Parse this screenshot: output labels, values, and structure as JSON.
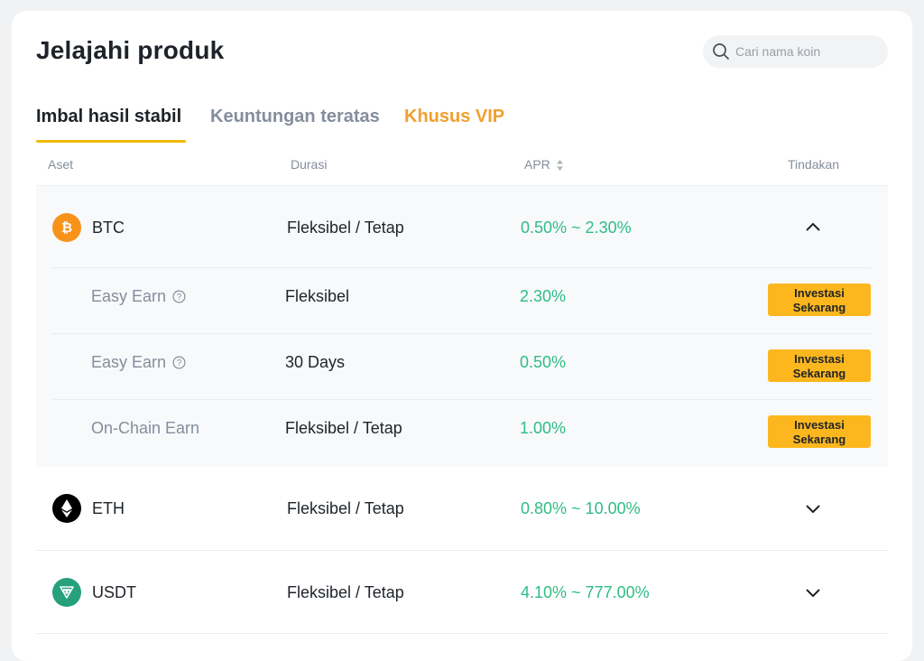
{
  "header": {
    "title": "Jelajahi produk"
  },
  "search": {
    "placeholder": "Cari nama koin"
  },
  "tabs": [
    {
      "label": "Imbal hasil stabil",
      "active": true
    },
    {
      "label": "Keuntungan teratas",
      "active": false
    },
    {
      "label": "Khusus VIP",
      "active": false
    }
  ],
  "columns": {
    "asset": "Aset",
    "duration": "Durasi",
    "apr": "APR",
    "action": "Tindakan"
  },
  "rows": [
    {
      "asset": "BTC",
      "icon": "bitcoin-icon",
      "color": "#f7931a",
      "duration": "Fleksibel / Tetap",
      "apr": "0.50% ~ 2.30%",
      "expanded": true,
      "products": [
        {
          "name": "Easy Earn",
          "has_info": true,
          "duration": "Fleksibel",
          "apr": "2.30%",
          "action_line1": "Investasi",
          "action_line2": "Sekarang"
        },
        {
          "name": "Easy Earn",
          "has_info": true,
          "duration": "30 Days",
          "apr": "0.50%",
          "action_line1": "Investasi",
          "action_line2": "Sekarang"
        },
        {
          "name": "On-Chain Earn",
          "has_info": false,
          "duration": "Fleksibel / Tetap",
          "apr": "1.00%",
          "action_line1": "Investasi",
          "action_line2": "Sekarang"
        }
      ]
    },
    {
      "asset": "ETH",
      "icon": "ethereum-icon",
      "color": "#000000",
      "duration": "Fleksibel / Tetap",
      "apr": "0.80% ~ 10.00%",
      "expanded": false
    },
    {
      "asset": "USDT",
      "icon": "tether-icon",
      "color": "#26a17b",
      "duration": "Fleksibel / Tetap",
      "apr": "4.10% ~ 777.00%",
      "expanded": false
    }
  ],
  "colors": {
    "accent": "#f0b90b",
    "positive": "#2ebd85",
    "button": "#fcb71e",
    "vip": "#f0a030"
  }
}
